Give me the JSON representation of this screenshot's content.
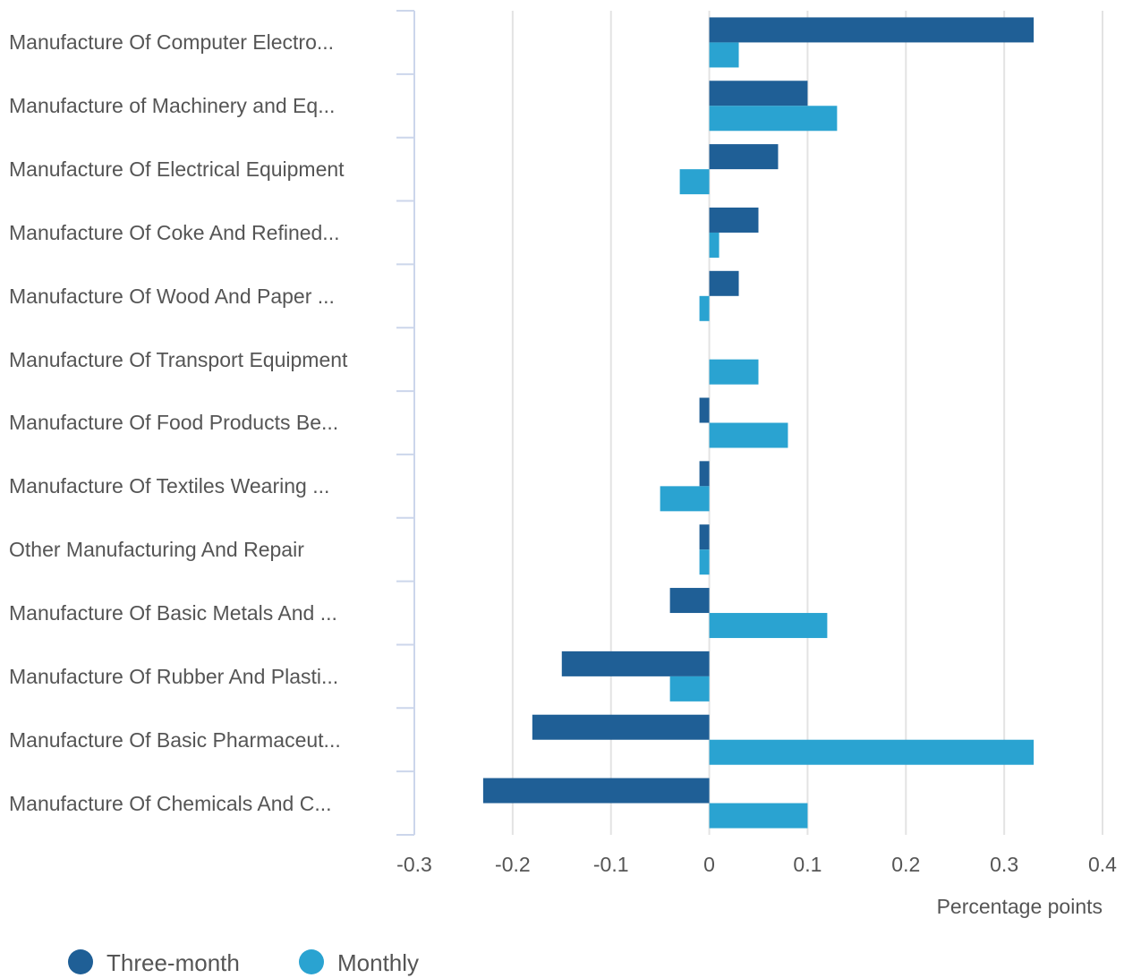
{
  "chart_data": {
    "type": "hbar",
    "categories": [
      "Manufacture Of Computer Electro...",
      "Manufacture of Machinery and Eq...",
      "Manufacture Of Electrical Equipment",
      "Manufacture Of Coke And Refined...",
      "Manufacture Of Wood And Paper ...",
      "Manufacture Of Transport Equipment",
      "Manufacture Of Food Products Be...",
      "Manufacture Of Textiles Wearing ...",
      "Other Manufacturing And Repair",
      "Manufacture Of Basic Metals And ...",
      "Manufacture Of Rubber And Plasti...",
      "Manufacture Of Basic Pharmaceut...",
      "Manufacture Of Chemicals And C..."
    ],
    "series": [
      {
        "name": "Three-month",
        "color": "#1f5f96",
        "values": [
          0.33,
          0.1,
          0.07,
          0.05,
          0.03,
          0,
          -0.01,
          -0.01,
          -0.01,
          -0.04,
          -0.15,
          -0.18,
          -0.23
        ]
      },
      {
        "name": "Monthly",
        "color": "#2aa3d1",
        "values": [
          0.03,
          0.13,
          -0.03,
          0.01,
          -0.01,
          0.05,
          0.08,
          -0.05,
          -0.01,
          0.12,
          -0.04,
          0.33,
          0.1
        ]
      }
    ],
    "xlabel": "Percentage points",
    "xlim": [
      -0.3,
      0.4
    ],
    "xticks": [
      -0.3,
      -0.2,
      -0.1,
      0,
      0.1,
      0.2,
      0.3,
      0.4
    ],
    "grid": true,
    "legend": "bottom-left"
  }
}
